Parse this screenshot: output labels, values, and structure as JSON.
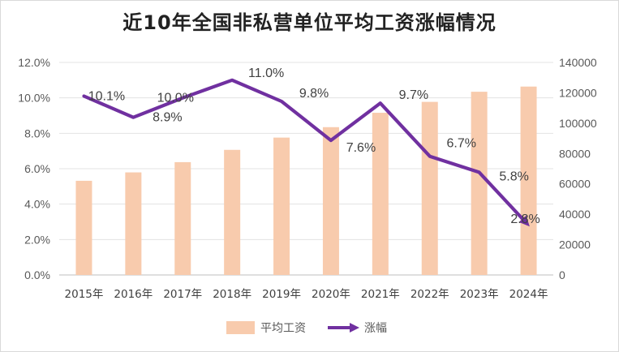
{
  "chart_data": {
    "type": "bar+line",
    "title": "近10年全国非私营单位平均工资涨幅情况",
    "categories": [
      "2015年",
      "2016年",
      "2017年",
      "2018年",
      "2019年",
      "2020年",
      "2021年",
      "2022年",
      "2023年",
      "2024年"
    ],
    "series": [
      {
        "name": "平均工资",
        "type": "bar",
        "axis": "right",
        "color": "#f8cbad",
        "values": [
          62029,
          67569,
          74318,
          82413,
          90501,
          97379,
          106837,
          114029,
          120698,
          124110
        ]
      },
      {
        "name": "涨幅",
        "type": "line",
        "axis": "left",
        "color": "#7030a0",
        "values": [
          10.1,
          8.9,
          10.0,
          11.0,
          9.8,
          7.6,
          9.7,
          6.7,
          5.8,
          2.8
        ],
        "labels": [
          "10.1%",
          "8.9%",
          "10.0%",
          "11.0%",
          "9.8%",
          "7.6%",
          "9.7%",
          "6.7%",
          "5.8%",
          "2.8%"
        ]
      }
    ],
    "y_left": {
      "min": 0,
      "max": 12,
      "step": 2,
      "ticks": [
        "0.0%",
        "2.0%",
        "4.0%",
        "6.0%",
        "8.0%",
        "10.0%",
        "12.0%"
      ]
    },
    "y_right": {
      "min": 0,
      "max": 140000,
      "step": 20000,
      "ticks": [
        "0",
        "20000",
        "40000",
        "60000",
        "80000",
        "100000",
        "120000",
        "140000"
      ]
    },
    "grid": true,
    "legend": "bottom"
  }
}
